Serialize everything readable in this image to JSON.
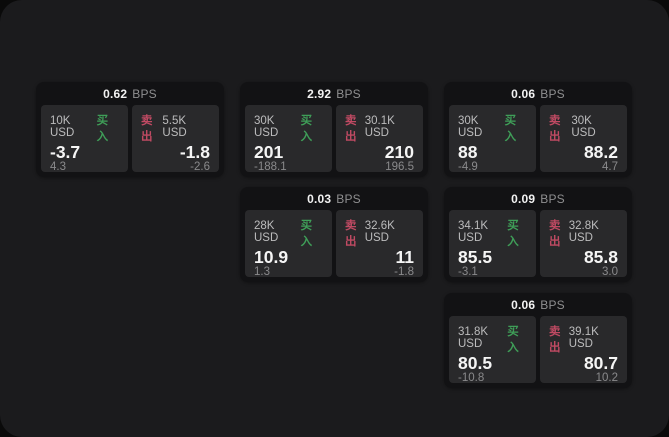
{
  "colors": {
    "window_bg": "#1b1b1d",
    "card_bg": "#121214",
    "panel_bg": "#29292b",
    "buy_green": "#3f9e58",
    "sell_red": "#c04a63",
    "primary_text": "#f5f5f5",
    "muted_text": "#8a8a8c"
  },
  "cards": [
    {
      "bps_value": "0.62",
      "bps_unit": "BPS",
      "buy": {
        "amount": "10K USD",
        "side_label": "买入",
        "price": "-3.7",
        "change": "4.3"
      },
      "sell": {
        "side_label": "卖出",
        "amount": "5.5K USD",
        "price": "-1.8",
        "change": "-2.6"
      }
    },
    {
      "bps_value": "2.92",
      "bps_unit": "BPS",
      "buy": {
        "amount": "30K USD",
        "side_label": "买入",
        "price": "201",
        "change": "-188.1"
      },
      "sell": {
        "side_label": "卖出",
        "amount": "30.1K USD",
        "price": "210",
        "change": "196.5"
      }
    },
    {
      "bps_value": "0.06",
      "bps_unit": "BPS",
      "buy": {
        "amount": "30K USD",
        "side_label": "买入",
        "price": "88",
        "change": "-4.9"
      },
      "sell": {
        "side_label": "卖出",
        "amount": "30K USD",
        "price": "88.2",
        "change": "4.7"
      }
    },
    {
      "bps_value": "0.03",
      "bps_unit": "BPS",
      "buy": {
        "amount": "28K USD",
        "side_label": "买入",
        "price": "10.9",
        "change": "1.3"
      },
      "sell": {
        "side_label": "卖出",
        "amount": "32.6K USD",
        "price": "11",
        "change": "-1.8"
      }
    },
    {
      "bps_value": "0.09",
      "bps_unit": "BPS",
      "buy": {
        "amount": "34.1K USD",
        "side_label": "买入",
        "price": "85.5",
        "change": "-3.1"
      },
      "sell": {
        "side_label": "卖出",
        "amount": "32.8K USD",
        "price": "85.8",
        "change": "3.0"
      }
    },
    {
      "bps_value": "0.06",
      "bps_unit": "BPS",
      "buy": {
        "amount": "31.8K USD",
        "side_label": "买入",
        "price": "80.5",
        "change": "-10.8"
      },
      "sell": {
        "side_label": "卖出",
        "amount": "39.1K USD",
        "price": "80.7",
        "change": "10.2"
      }
    }
  ]
}
